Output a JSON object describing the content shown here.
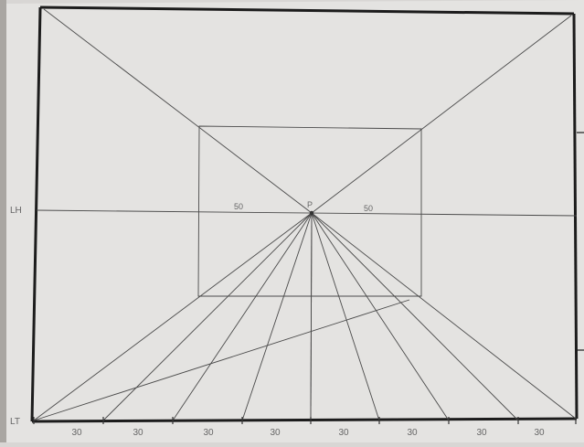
{
  "labels": {
    "horizon": "LH",
    "ground": "LT",
    "vanishing_point": "P",
    "left_distance": "50",
    "right_distance": "50"
  },
  "ground_marks": [
    "30",
    "30",
    "30",
    "30",
    "30",
    "30",
    "30",
    "30"
  ],
  "colors": {
    "paper": "#e4e3e1",
    "background": "#d8d6d4",
    "frame": "#1c1c1c",
    "pencil": "#4a4a4a",
    "label": "#666666"
  }
}
